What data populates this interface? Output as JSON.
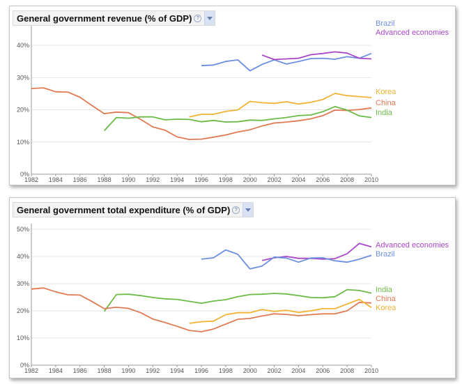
{
  "colors": {
    "Brazil": "#6b8fe0",
    "Advanced economies": "#a946c8",
    "Korea": "#f2b234",
    "China": "#e07a52",
    "India": "#6bbb46"
  },
  "chart_data": [
    {
      "type": "line",
      "title": "General government revenue (% of GDP)",
      "xlabel": "",
      "ylabel": "",
      "xlim": [
        1982,
        2010
      ],
      "ylim": [
        0,
        45
      ],
      "grid": true,
      "legend": "end-of-line labels",
      "x_ticks": [
        "1982",
        "1984",
        "1986",
        "1988",
        "1990",
        "1992",
        "1994",
        "1996",
        "1998",
        "2000",
        "2002",
        "2004",
        "2006",
        "2008",
        "2010"
      ],
      "y_ticks": [
        "0%",
        "10%",
        "20%",
        "30%",
        "40%"
      ],
      "series": [
        {
          "name": "Brazil",
          "x": [
            1996,
            1997,
            1998,
            1999,
            2000,
            2001,
            2002,
            2003,
            2004,
            2005,
            2006,
            2007,
            2008,
            2009,
            2010
          ],
          "values": [
            33.7,
            33.9,
            35.0,
            35.5,
            32.1,
            34.1,
            35.5,
            34.2,
            35.0,
            35.9,
            36.0,
            35.7,
            36.5,
            36.0,
            37.5
          ]
        },
        {
          "name": "Advanced economies",
          "x": [
            2001,
            2002,
            2003,
            2004,
            2005,
            2006,
            2007,
            2008,
            2009,
            2010
          ],
          "values": [
            37.0,
            35.6,
            35.8,
            36.0,
            37.1,
            37.5,
            38.0,
            37.6,
            36.0,
            35.8
          ]
        },
        {
          "name": "Korea",
          "x": [
            1995,
            1996,
            1997,
            1998,
            1999,
            2000,
            2001,
            2002,
            2003,
            2004,
            2005,
            2006,
            2007,
            2008,
            2009,
            2010
          ],
          "values": [
            17.8,
            18.6,
            18.6,
            19.5,
            20.0,
            22.6,
            22.2,
            22.0,
            22.5,
            21.8,
            22.3,
            23.2,
            25.1,
            24.4,
            24.1,
            23.8
          ]
        },
        {
          "name": "China",
          "x": [
            1982,
            1983,
            1984,
            1985,
            1986,
            1987,
            1988,
            1989,
            1990,
            1991,
            1992,
            1993,
            1994,
            1995,
            1996,
            1997,
            1998,
            1999,
            2000,
            2001,
            2002,
            2003,
            2004,
            2005,
            2006,
            2007,
            2008,
            2009,
            2010
          ],
          "values": [
            26.6,
            26.8,
            25.6,
            25.5,
            23.9,
            21.3,
            18.8,
            19.3,
            19.1,
            17.0,
            14.7,
            13.7,
            11.6,
            10.8,
            10.9,
            11.5,
            12.2,
            13.1,
            13.8,
            15.0,
            15.9,
            16.2,
            16.6,
            17.2,
            18.2,
            19.9,
            19.8,
            20.1,
            20.6
          ]
        },
        {
          "name": "India",
          "x": [
            1988,
            1989,
            1990,
            1991,
            1992,
            1993,
            1994,
            1995,
            1996,
            1997,
            1998,
            1999,
            2000,
            2001,
            2002,
            2003,
            2004,
            2005,
            2006,
            2007,
            2008,
            2009,
            2010
          ],
          "values": [
            13.5,
            17.6,
            17.4,
            17.8,
            17.8,
            16.9,
            17.1,
            17.0,
            16.3,
            16.7,
            16.2,
            16.3,
            16.8,
            16.7,
            17.2,
            17.6,
            18.2,
            18.4,
            19.4,
            21.0,
            19.9,
            18.1,
            17.6
          ]
        }
      ]
    },
    {
      "type": "line",
      "title": "General government total expenditure (% of GDP)",
      "xlabel": "",
      "ylabel": "",
      "xlim": [
        1982,
        2010
      ],
      "ylim": [
        0,
        50
      ],
      "grid": true,
      "legend": "end-of-line labels",
      "x_ticks": [
        "1982",
        "1984",
        "1986",
        "1988",
        "1990",
        "1992",
        "1994",
        "1996",
        "1998",
        "2000",
        "2002",
        "2004",
        "2006",
        "2008",
        "2010"
      ],
      "y_ticks": [
        "0%",
        "10%",
        "20%",
        "30%",
        "40%",
        "50%"
      ],
      "series": [
        {
          "name": "Advanced economies",
          "x": [
            2001,
            2002,
            2003,
            2004,
            2005,
            2006,
            2007,
            2008,
            2009,
            2010
          ],
          "values": [
            38.5,
            39.5,
            40.0,
            39.3,
            39.3,
            39.0,
            39.2,
            41.0,
            44.8,
            43.5
          ]
        },
        {
          "name": "Brazil",
          "x": [
            1996,
            1997,
            1998,
            1999,
            2000,
            2001,
            2002,
            2003,
            2004,
            2005,
            2006,
            2007,
            2008,
            2009,
            2010
          ],
          "values": [
            39.0,
            39.5,
            42.4,
            40.8,
            35.4,
            36.5,
            39.8,
            39.4,
            37.9,
            39.4,
            39.5,
            38.4,
            37.9,
            39.0,
            40.4
          ]
        },
        {
          "name": "India",
          "x": [
            1988,
            1989,
            1990,
            1991,
            1992,
            1993,
            1994,
            1995,
            1996,
            1997,
            1998,
            1999,
            2000,
            2001,
            2002,
            2003,
            2004,
            2005,
            2006,
            2007,
            2008,
            2009,
            2010
          ],
          "values": [
            19.8,
            26.0,
            26.1,
            25.6,
            24.9,
            24.4,
            24.2,
            23.5,
            22.8,
            23.6,
            24.1,
            25.2,
            26.0,
            26.1,
            26.4,
            26.2,
            25.6,
            24.9,
            24.8,
            25.2,
            27.8,
            27.5,
            26.5
          ]
        },
        {
          "name": "China",
          "x": [
            1982,
            1983,
            1984,
            1985,
            1986,
            1987,
            1988,
            1989,
            1990,
            1991,
            1992,
            1993,
            1994,
            1995,
            1996,
            1997,
            1998,
            1999,
            2000,
            2001,
            2002,
            2003,
            2004,
            2005,
            2006,
            2007,
            2008,
            2009,
            2010
          ],
          "values": [
            28.0,
            28.4,
            27.0,
            25.9,
            25.8,
            23.4,
            20.8,
            21.3,
            20.9,
            19.3,
            17.0,
            15.7,
            14.3,
            12.8,
            12.3,
            13.3,
            15.1,
            16.9,
            17.2,
            18.1,
            18.9,
            18.7,
            18.2,
            18.6,
            18.9,
            18.9,
            20.0,
            23.1,
            22.9
          ]
        },
        {
          "name": "Korea",
          "x": [
            1995,
            1996,
            1997,
            1998,
            1999,
            2000,
            2001,
            2002,
            2003,
            2004,
            2005,
            2006,
            2007,
            2008,
            2009,
            2010
          ],
          "values": [
            15.4,
            16.0,
            16.2,
            18.6,
            19.3,
            19.3,
            20.5,
            19.8,
            20.2,
            19.4,
            20.0,
            20.8,
            20.8,
            22.5,
            24.2,
            21.2
          ]
        }
      ]
    }
  ]
}
